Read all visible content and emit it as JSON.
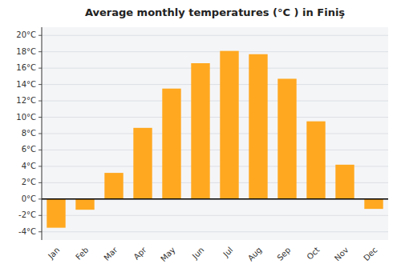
{
  "chart_data": {
    "type": "bar",
    "title": "Average monthly temperatures (°C ) in Finiş",
    "categories": [
      "Jan",
      "Feb",
      "Mar",
      "Apr",
      "May",
      "Jun",
      "Jul",
      "Aug",
      "Sep",
      "Oct",
      "Nov",
      "Dec"
    ],
    "values": [
      -3.5,
      -1.3,
      3.2,
      8.7,
      13.5,
      16.6,
      18.1,
      17.7,
      14.7,
      9.5,
      4.2,
      -1.2
    ],
    "color": "#FFA820",
    "ylim": [
      -5,
      21
    ],
    "yticks": [
      {
        "value": -4,
        "label": "-4°C"
      },
      {
        "value": -2,
        "label": "-2°C"
      },
      {
        "value": 0,
        "label": "0°C"
      },
      {
        "value": 2,
        "label": "2°C"
      },
      {
        "value": 4,
        "label": "4°C"
      },
      {
        "value": 6,
        "label": "6°C"
      },
      {
        "value": 8,
        "label": "8°C"
      },
      {
        "value": 10,
        "label": "10°C"
      },
      {
        "value": 12,
        "label": "12°C"
      },
      {
        "value": 14,
        "label": "14°C"
      },
      {
        "value": 16,
        "label": "16°C"
      },
      {
        "value": 18,
        "label": "18°C"
      },
      {
        "value": 20,
        "label": "20°C"
      }
    ],
    "grid": true
  }
}
